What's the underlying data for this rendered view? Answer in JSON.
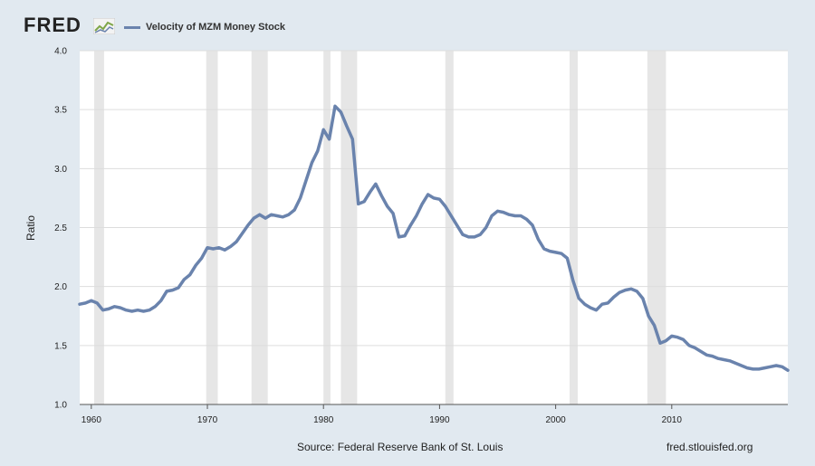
{
  "header": {
    "logo_text": "FRED",
    "logo_icon": "line-chart-icon",
    "legend_label": "Velocity of MZM Money Stock"
  },
  "footer": {
    "source": "Source: Federal Reserve Bank of St. Louis",
    "url": "fred.stlouisfed.org"
  },
  "colors": {
    "line": "#6a83ad",
    "recession": "#e6e6e6",
    "background": "#e1e9f0",
    "plot": "#ffffff",
    "grid": "#dddddd"
  },
  "chart_data": {
    "type": "line",
    "ylabel": "Ratio",
    "xlabel": "",
    "xlim": [
      1959.0,
      2020.0
    ],
    "ylim": [
      1.0,
      4.0
    ],
    "y_ticks": [
      1.0,
      1.5,
      2.0,
      2.5,
      3.0,
      3.5,
      4.0
    ],
    "y_tick_labels": [
      "1.0",
      "1.5",
      "2.0",
      "2.5",
      "3.0",
      "3.5",
      "4.0"
    ],
    "x_ticks": [
      1960,
      1970,
      1980,
      1990,
      2000,
      2010
    ],
    "x_tick_labels": [
      "1960",
      "1970",
      "1980",
      "1990",
      "2000",
      "2010"
    ],
    "grid": true,
    "recessions": [
      [
        1960.25,
        1961.1
      ],
      [
        1969.9,
        1970.9
      ],
      [
        1973.8,
        1975.2
      ],
      [
        1980.0,
        1980.6
      ],
      [
        1981.5,
        1982.9
      ],
      [
        1990.5,
        1991.2
      ],
      [
        2001.2,
        2001.9
      ],
      [
        2007.9,
        2009.5
      ]
    ],
    "series": [
      {
        "x": [
          1959.0,
          1959.5,
          1960.0,
          1960.5,
          1961.0,
          1961.5,
          1962.0,
          1962.5,
          1963.0,
          1963.5,
          1964.0,
          1964.5,
          1965.0,
          1965.5,
          1966.0,
          1966.5,
          1967.0,
          1967.5,
          1968.0,
          1968.5,
          1969.0,
          1969.5,
          1970.0,
          1970.5,
          1971.0,
          1971.5,
          1972.0,
          1972.5,
          1973.0,
          1973.5,
          1974.0,
          1974.5,
          1975.0,
          1975.5,
          1976.0,
          1976.5,
          1977.0,
          1977.5,
          1978.0,
          1978.5,
          1979.0,
          1979.5,
          1980.0,
          1980.5,
          1981.0,
          1981.5,
          1982.0,
          1982.5,
          1983.0,
          1983.5,
          1984.0,
          1984.5,
          1985.0,
          1985.5,
          1986.0,
          1986.5,
          1987.0,
          1987.5,
          1988.0,
          1988.5,
          1989.0,
          1989.5,
          1990.0,
          1990.5,
          1991.0,
          1991.5,
          1992.0,
          1992.5,
          1993.0,
          1993.5,
          1994.0,
          1994.5,
          1995.0,
          1995.5,
          1996.0,
          1996.5,
          1997.0,
          1997.5,
          1998.0,
          1998.5,
          1999.0,
          1999.5,
          2000.0,
          2000.5,
          2001.0,
          2001.5,
          2002.0,
          2002.5,
          2003.0,
          2003.5,
          2004.0,
          2004.5,
          2005.0,
          2005.5,
          2006.0,
          2006.5,
          2007.0,
          2007.5,
          2008.0,
          2008.5,
          2009.0,
          2009.5,
          2010.0,
          2010.5,
          2011.0,
          2011.5,
          2012.0,
          2012.5,
          2013.0,
          2013.5,
          2014.0,
          2014.5,
          2015.0,
          2015.5,
          2016.0,
          2016.5,
          2017.0,
          2017.5,
          2018.0,
          2018.5,
          2019.0,
          2019.5,
          2020.0
        ],
        "values": [
          1.85,
          1.86,
          1.88,
          1.86,
          1.8,
          1.81,
          1.83,
          1.82,
          1.8,
          1.79,
          1.8,
          1.79,
          1.8,
          1.83,
          1.88,
          1.96,
          1.97,
          1.99,
          2.06,
          2.1,
          2.18,
          2.24,
          2.33,
          2.32,
          2.33,
          2.31,
          2.34,
          2.38,
          2.45,
          2.52,
          2.58,
          2.61,
          2.58,
          2.61,
          2.6,
          2.59,
          2.61,
          2.65,
          2.75,
          2.9,
          3.05,
          3.15,
          3.33,
          3.25,
          3.53,
          3.48,
          3.36,
          3.25,
          2.7,
          2.72,
          2.8,
          2.87,
          2.77,
          2.68,
          2.62,
          2.42,
          2.43,
          2.52,
          2.6,
          2.7,
          2.78,
          2.75,
          2.74,
          2.68,
          2.6,
          2.52,
          2.44,
          2.42,
          2.42,
          2.44,
          2.5,
          2.6,
          2.64,
          2.63,
          2.61,
          2.6,
          2.6,
          2.57,
          2.52,
          2.4,
          2.32,
          2.3,
          2.29,
          2.28,
          2.24,
          2.05,
          1.9,
          1.85,
          1.82,
          1.8,
          1.85,
          1.86,
          1.91,
          1.95,
          1.97,
          1.98,
          1.96,
          1.9,
          1.75,
          1.67,
          1.52,
          1.54,
          1.58,
          1.57,
          1.55,
          1.5,
          1.48,
          1.45,
          1.42,
          1.41,
          1.39,
          1.38,
          1.37,
          1.35,
          1.33,
          1.31,
          1.3,
          1.3,
          1.31,
          1.32,
          1.33,
          1.32,
          1.29
        ]
      }
    ]
  }
}
